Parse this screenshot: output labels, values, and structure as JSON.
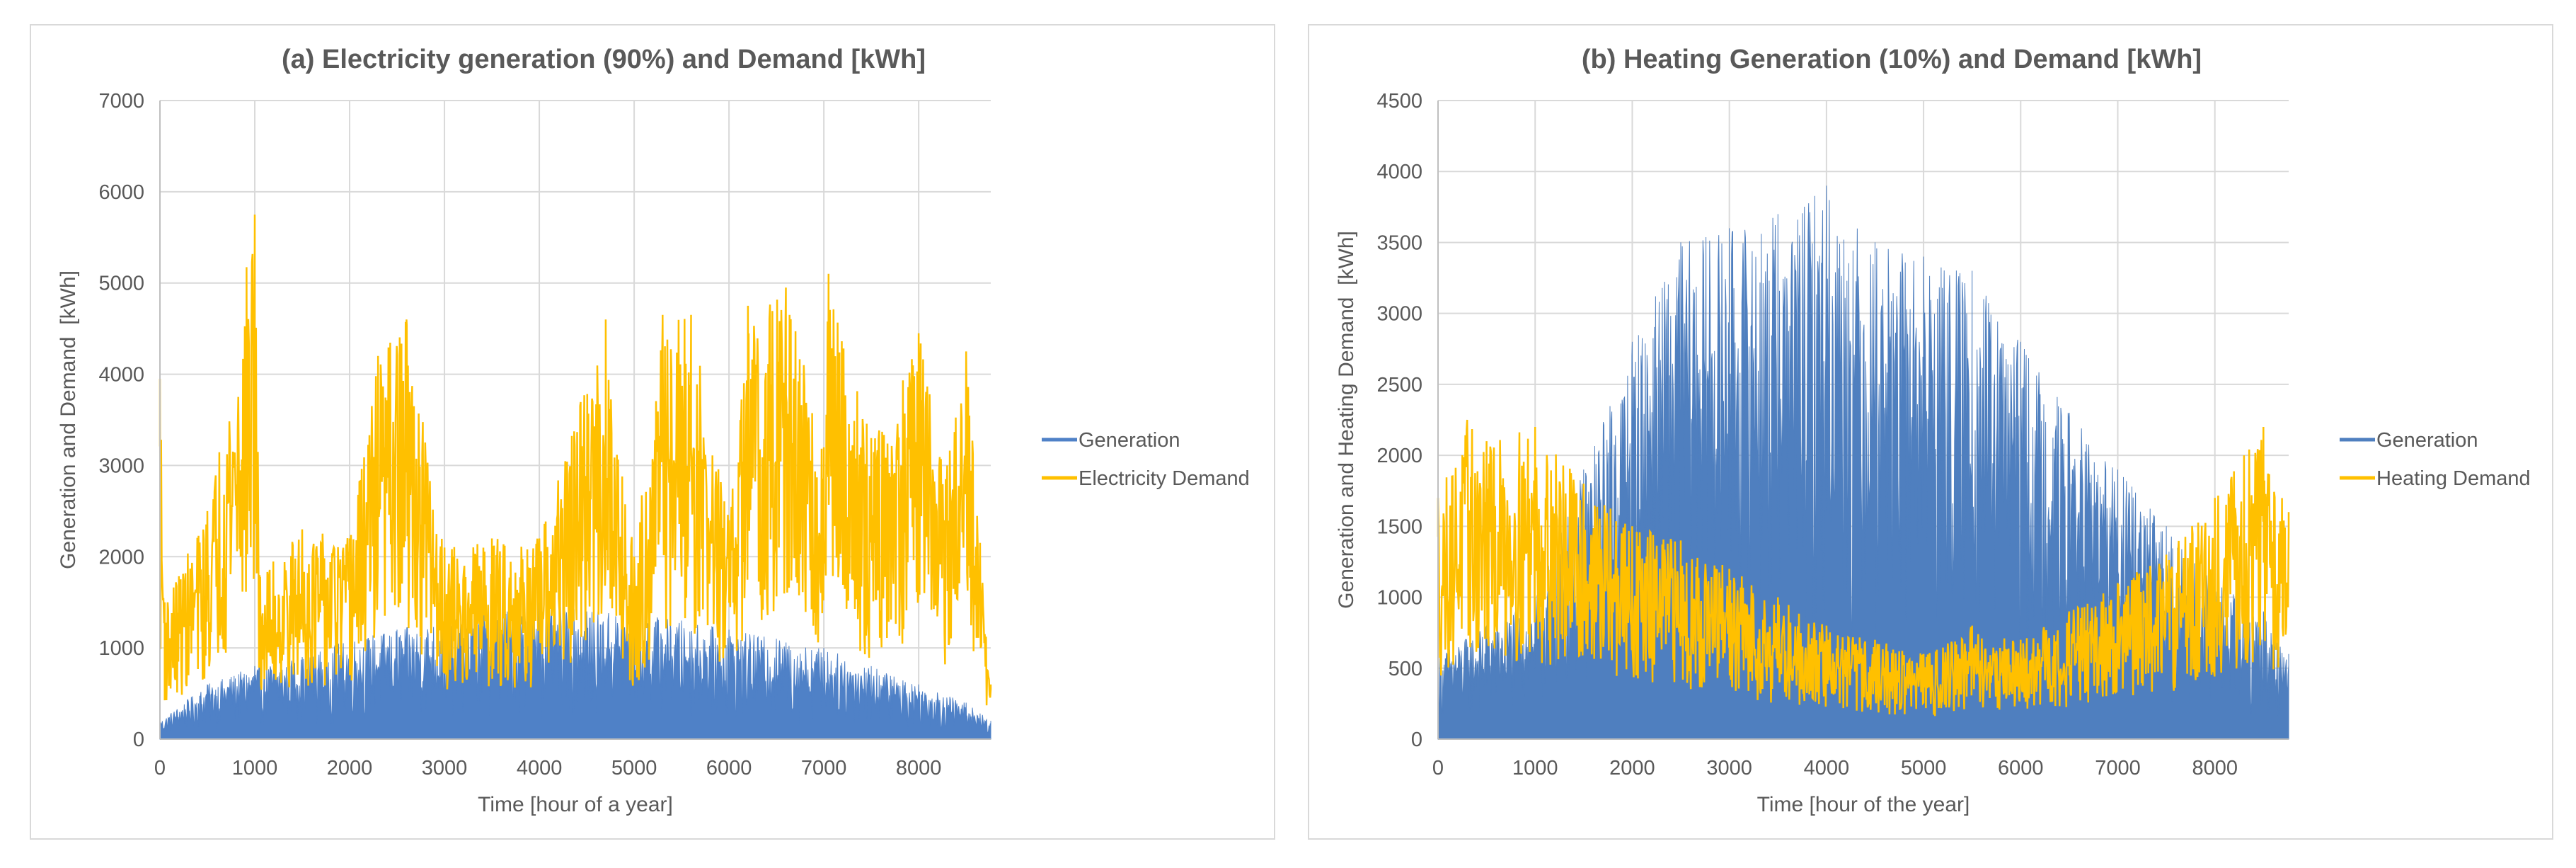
{
  "chart_data": [
    {
      "type": "area",
      "title": "(a) Electricity generation (90%) and Demand [kWh]",
      "xlabel": "Time [hour of a year]",
      "ylabel": "Generation and Demand  [kWh]",
      "xlim": [
        0,
        8760
      ],
      "ylim": [
        0,
        7000
      ],
      "x_ticks": [
        "0",
        "1000",
        "2000",
        "3000",
        "4000",
        "5000",
        "6000",
        "7000",
        "8000"
      ],
      "y_ticks": [
        "0",
        "1000",
        "2000",
        "3000",
        "4000",
        "5000",
        "6000",
        "7000"
      ],
      "grid": true,
      "legend_position": "right",
      "series": [
        {
          "name": "Generation",
          "color": "#4f81c7",
          "x": [
            0,
            500,
            1000,
            1500,
            2000,
            2500,
            3000,
            3500,
            4000,
            4500,
            5000,
            5500,
            6000,
            6500,
            7000,
            7500,
            8000,
            8500,
            8760
          ],
          "values": [
            200,
            600,
            800,
            900,
            1100,
            1200,
            1300,
            1400,
            1500,
            1400,
            1400,
            1300,
            1200,
            1100,
            1000,
            800,
            600,
            400,
            200
          ]
        },
        {
          "name": "Electricity Demand",
          "color": "#ffc000",
          "x": [
            0,
            50,
            500,
            1000,
            1050,
            1500,
            2000,
            2300,
            2600,
            3000,
            3500,
            4000,
            4700,
            5000,
            5300,
            5600,
            6000,
            6200,
            6600,
            7000,
            7050,
            7500,
            8000,
            8300,
            8500,
            8760
          ],
          "values": [
            3950,
            1500,
            2500,
            5750,
            1800,
            2300,
            2200,
            4200,
            4600,
            2100,
            2200,
            2200,
            4600,
            2000,
            4650,
            4650,
            2400,
            4750,
            4950,
            3200,
            5100,
            3300,
            4450,
            3000,
            4250,
            600
          ]
        }
      ]
    },
    {
      "type": "area",
      "title": "(b) Heating Generation (10%) and Demand [kWh]",
      "xlabel": "Time [hour of the year]",
      "ylabel": "Generation and Heating Demand  [kWh]",
      "xlim": [
        0,
        8760
      ],
      "ylim": [
        0,
        4500
      ],
      "x_ticks": [
        "0",
        "1000",
        "2000",
        "3000",
        "4000",
        "5000",
        "6000",
        "7000",
        "8000"
      ],
      "y_ticks": [
        "0",
        "500",
        "1000",
        "1500",
        "2000",
        "2500",
        "3000",
        "3500",
        "4000",
        "4500"
      ],
      "grid": true,
      "legend_position": "right",
      "series": [
        {
          "name": "Generation",
          "color": "#4f7fbf",
          "x": [
            0,
            500,
            1000,
            1500,
            2000,
            2500,
            3000,
            3500,
            4000,
            4500,
            5000,
            5500,
            6000,
            6500,
            7000,
            7500,
            8000,
            8500,
            8760
          ],
          "values": [
            600,
            800,
            1000,
            1900,
            2800,
            3500,
            3600,
            3700,
            3900,
            3500,
            3400,
            3300,
            2800,
            2300,
            1900,
            1500,
            1100,
            900,
            600
          ]
        },
        {
          "name": "Heating Demand",
          "color": "#ffc000",
          "x": [
            0,
            300,
            500,
            1000,
            1500,
            2000,
            2500,
            3000,
            3500,
            4000,
            4500,
            5000,
            5500,
            6000,
            6500,
            7000,
            7500,
            8000,
            8300,
            8500,
            8760
          ],
          "values": [
            1700,
            2250,
            2100,
            2200,
            1800,
            1500,
            1400,
            1200,
            1000,
            800,
            700,
            600,
            800,
            700,
            900,
            1100,
            1300,
            1700,
            2000,
            2200,
            1600
          ]
        }
      ]
    }
  ]
}
